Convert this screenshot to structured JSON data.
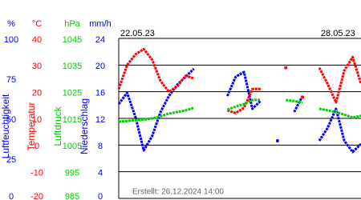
{
  "chart_data": {
    "type": "line",
    "annotation": "Erstellt: 26.12.2024 14:00",
    "xlim": [
      0,
      7.25
    ],
    "xticks": [
      {
        "value": 0,
        "label": "22.05.23"
      },
      {
        "value": 6,
        "label": "28.05.23"
      }
    ],
    "grid": true,
    "axes": [
      {
        "unit": "%",
        "title": "Luftfeuchtigkeit",
        "color": "#0000ff",
        "ylim": [
          0,
          100
        ],
        "yticks": [
          0,
          25,
          50,
          75,
          100
        ]
      },
      {
        "unit": "°C",
        "title": "Temperatur",
        "color": "#ff0000",
        "ylim": [
          -20,
          40
        ],
        "yticks": [
          -20,
          -10,
          0,
          10,
          20,
          30,
          40
        ]
      },
      {
        "unit": "hPa",
        "title": "Luftdruck",
        "color": "#00cc00",
        "ylim": [
          985,
          1045
        ],
        "yticks": [
          985,
          995,
          1005,
          1015,
          1025,
          1035,
          1045
        ]
      },
      {
        "unit": "mm/h",
        "title": "Niederschlag",
        "color": "#0000ff",
        "ylim": [
          0,
          24
        ],
        "yticks": [
          0,
          4,
          8,
          12,
          16,
          20,
          24
        ]
      }
    ],
    "x": [
      0,
      0.25,
      0.5,
      0.75,
      1,
      1.25,
      1.5,
      1.75,
      2,
      2.25,
      2.5,
      2.75,
      3,
      3.25,
      3.5,
      3.75,
      4,
      4.25,
      4.5,
      4.75,
      5,
      5.25,
      5.5,
      5.75,
      6,
      6.25,
      6.5,
      6.75,
      7,
      7.25
    ],
    "series": [
      {
        "name": "Luftfeuchtigkeit",
        "color": "#0000ff",
        "axis": 0,
        "values": [
          59,
          66,
          51,
          30,
          39,
          54,
          64,
          71,
          76,
          81,
          null,
          null,
          null,
          64,
          76,
          79,
          56,
          61,
          null,
          36,
          null,
          54,
          64,
          null,
          36,
          44,
          56,
          36,
          29,
          34
        ]
      },
      {
        "name": "Temperatur",
        "color": "#ff0000",
        "axis": 1,
        "values": [
          21,
          30,
          34,
          36,
          32,
          24,
          20,
          22,
          26,
          25,
          null,
          null,
          null,
          13,
          12,
          14,
          21,
          21,
          null,
          null,
          29,
          null,
          18,
          null,
          29,
          23,
          16,
          28,
          33,
          23
        ]
      },
      {
        "name": "Luftdruck",
        "color": "#00cc00",
        "axis": 2,
        "values": [
          1013.8,
          1014,
          1014.4,
          1014.6,
          1015,
          1015.8,
          1016.8,
          1017.4,
          1018,
          1019,
          null,
          null,
          null,
          1018.3,
          1019.4,
          1020.4,
          1021.9,
          1022,
          null,
          null,
          1021.9,
          1021.5,
          1021,
          null,
          1018.6,
          1018,
          1017.4,
          1016.4,
          1015.3,
          1016
        ]
      }
    ]
  }
}
